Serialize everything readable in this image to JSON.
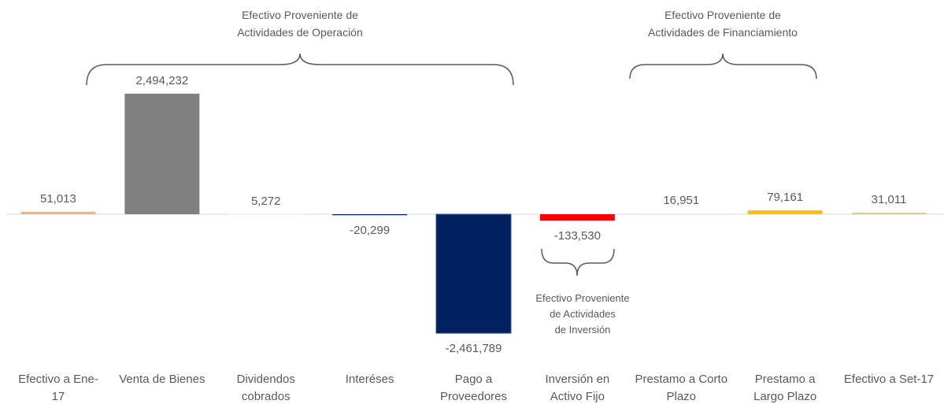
{
  "chart_data": {
    "type": "bar",
    "categories": [
      "Efectivo a Ene-17",
      "Venta de Bienes",
      "Dividendos cobrados",
      "Interéses",
      "Pago a Proveedores",
      "Inversión en Activo Fijo",
      "Prestamo a Corto Plazo",
      "Prestamo a Largo Plazo",
      "Efectivo a Set-17"
    ],
    "values": [
      51013,
      2494232,
      5272,
      -20299,
      -2461789,
      -133530,
      16951,
      79161,
      31011
    ],
    "value_labels": [
      "51,013",
      "2,494,232",
      "5,272",
      "-20,299",
      "-2,461,789",
      "-133,530",
      "16,951",
      "79,161",
      "31,011"
    ],
    "colors": [
      "#f4b183",
      "#808080",
      "#f2f2f2",
      "#002060",
      "#002060",
      "#ff0000",
      "#f2f2f2",
      "#ffc000",
      "#e6c38a"
    ],
    "ylim": [
      -2500000,
      2500000
    ],
    "annotations": [
      {
        "lines": [
          "Efectivo Proveniente de",
          "Actividades de Operación"
        ]
      },
      {
        "lines": [
          "Efectivo Proveniente de",
          "Actividades de Financiamiento"
        ]
      },
      {
        "lines": [
          "Efectivo Proveniente",
          "de Actividades",
          "de Inversión"
        ]
      }
    ]
  }
}
